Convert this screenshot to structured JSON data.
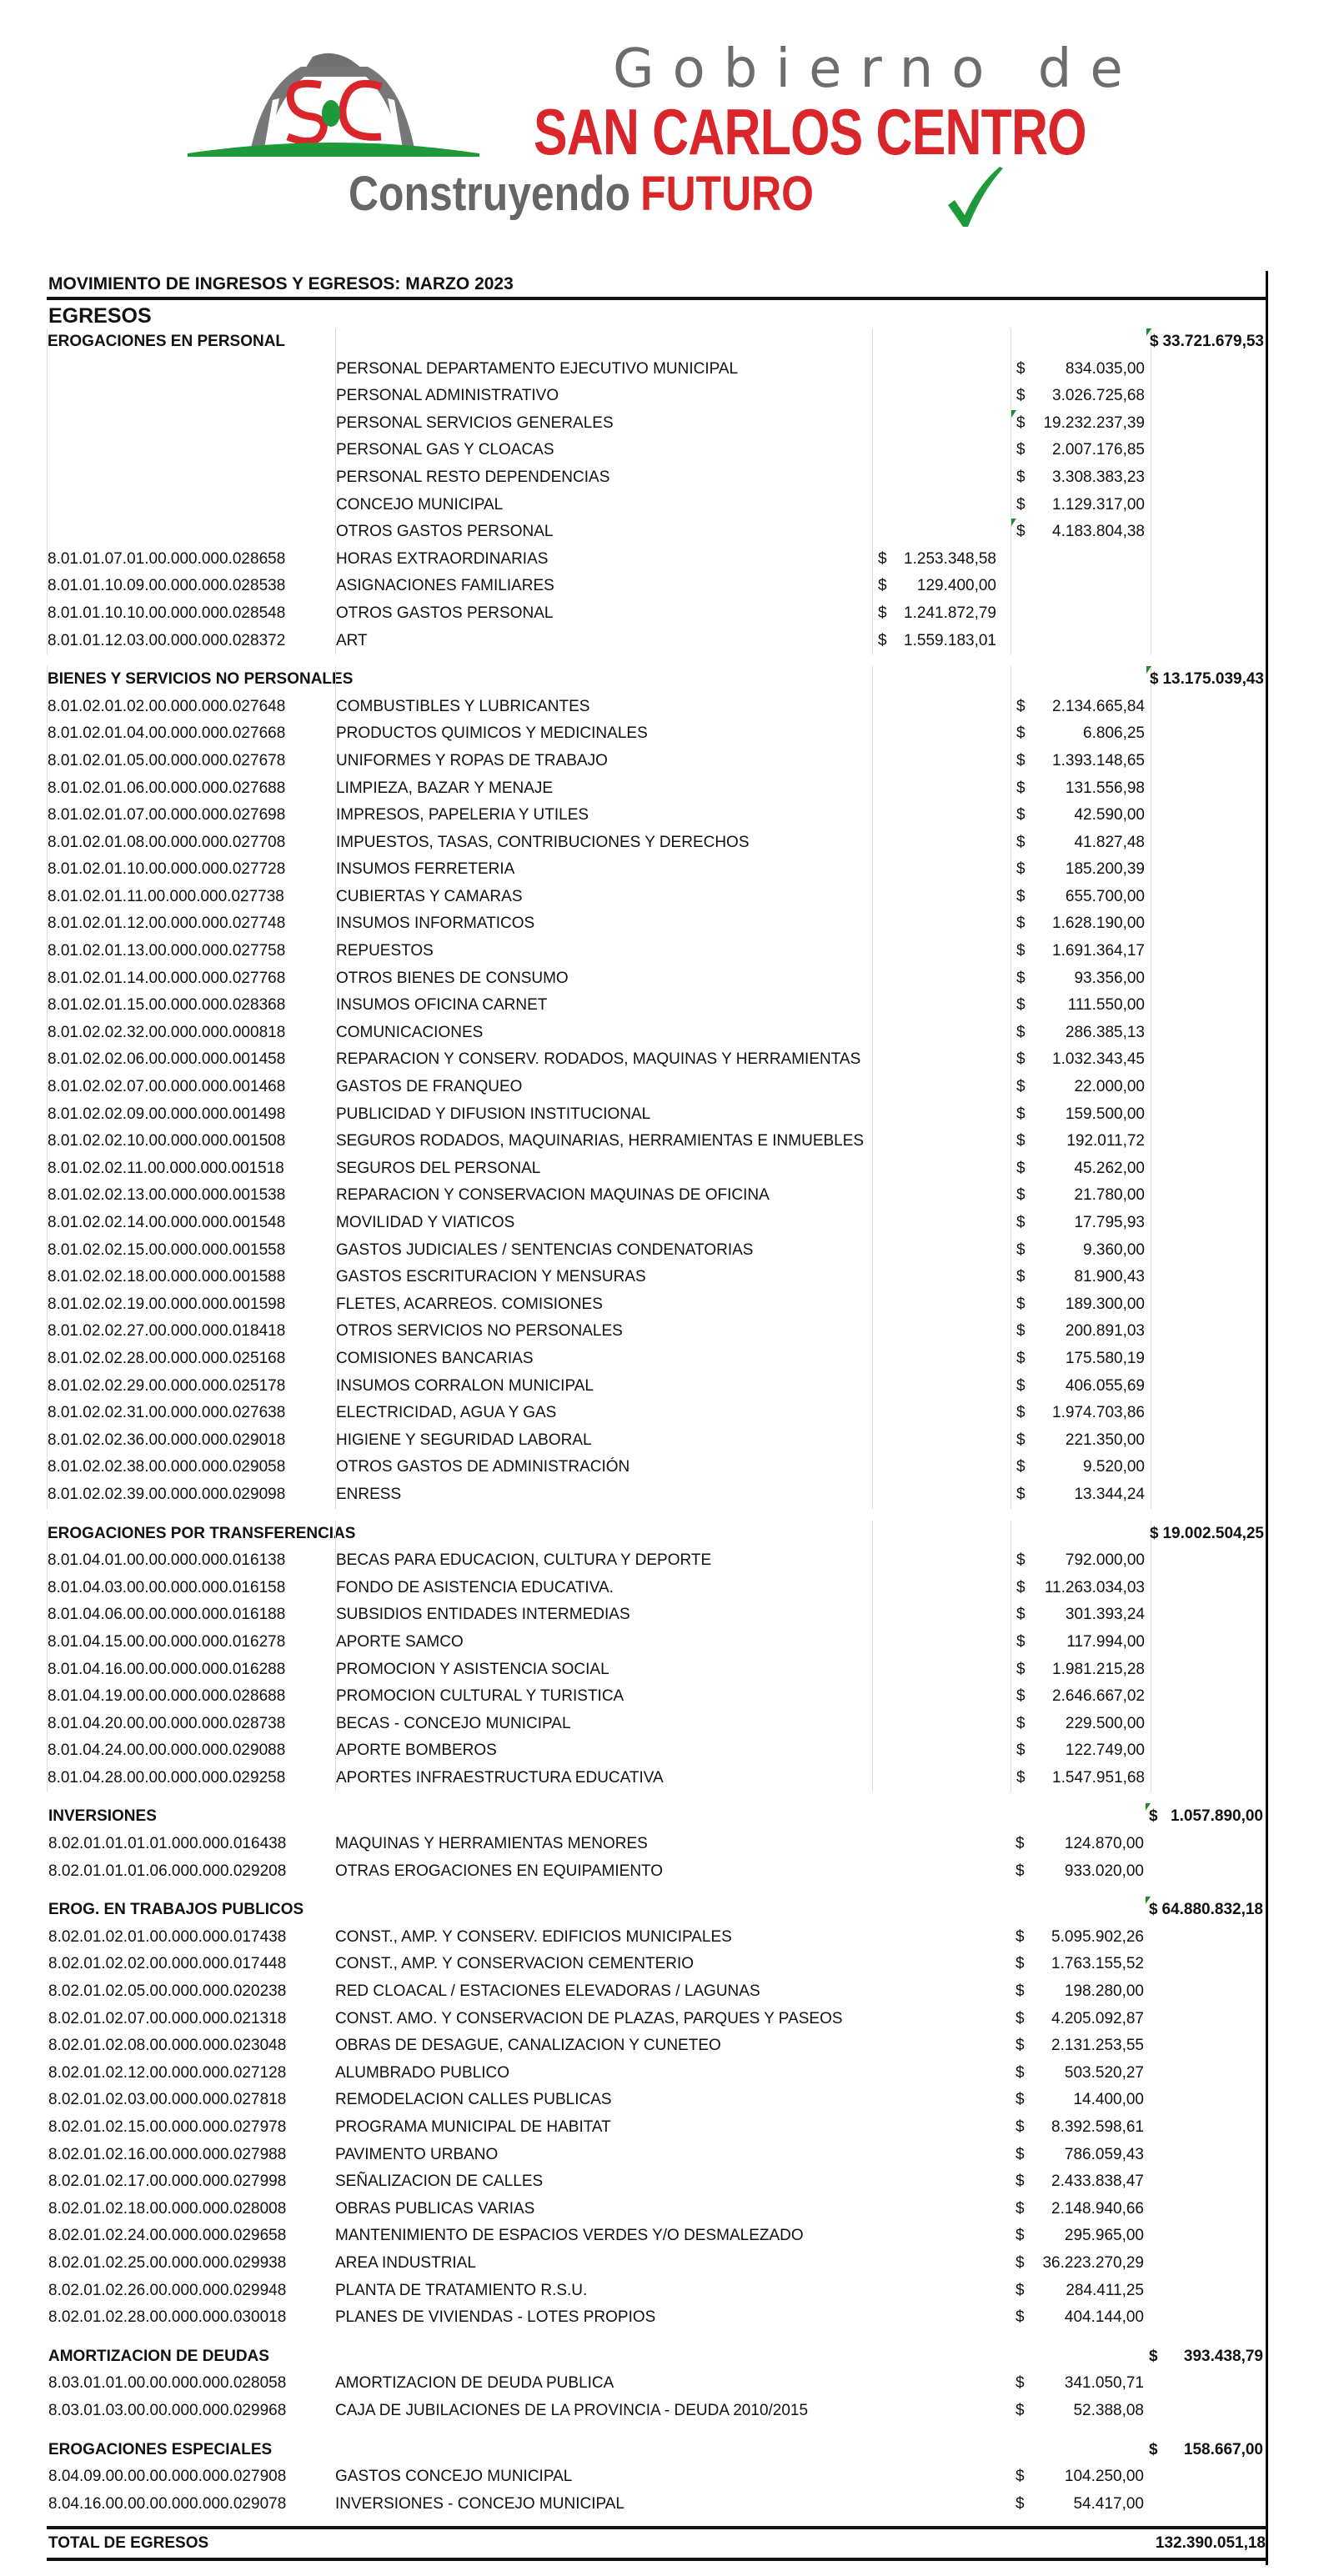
{
  "header": {
    "logo_initials": "SC",
    "line1": "Gobierno de",
    "line2": "SAN CARLOS CENTRO",
    "slogan_a": "Construyendo",
    "slogan_b": "FUTURO",
    "colors": {
      "red": "#d8262a",
      "gray": "#6d6d6d",
      "green": "#1f9a3a"
    }
  },
  "report": {
    "title": "MOVIMIENTO DE INGRESOS Y EGRESOS: MARZO 2023",
    "section": "EGRESOS",
    "currency": "$",
    "total_label": "TOTAL DE EGRESOS",
    "total_value": "132.390.051,18"
  },
  "sections": [
    {
      "title": "EROGACIONES EN PERSONAL",
      "total": "33.721.679,53",
      "marker": true,
      "rows": [
        {
          "code": "",
          "description": "PERSONAL DEPARTAMENTO EJECUTIVO MUNICIPAL",
          "amount": "834.035,00"
        },
        {
          "code": "",
          "description": "PERSONAL ADMINISTRATIVO",
          "amount": "3.026.725,68"
        },
        {
          "code": "",
          "description": "PERSONAL SERVICIOS GENERALES",
          "amount": "19.232.237,39",
          "marker": true
        },
        {
          "code": "",
          "description": "PERSONAL GAS Y CLOACAS",
          "amount": "2.007.176,85"
        },
        {
          "code": "",
          "description": "PERSONAL RESTO DEPENDENCIAS",
          "amount": "3.308.383,23"
        },
        {
          "code": "",
          "description": "CONCEJO MUNICIPAL",
          "amount": "1.129.317,00"
        },
        {
          "code": "",
          "description": "OTROS GASTOS PERSONAL",
          "amount": "4.183.804,38",
          "marker": true
        },
        {
          "code": "8.01.01.07.01.00.000.000.028658",
          "description": "HORAS EXTRAORDINARIAS",
          "detail": "1.253.348,58"
        },
        {
          "code": "8.01.01.10.09.00.000.000.028538",
          "description": "ASIGNACIONES FAMILIARES",
          "detail": "129.400,00"
        },
        {
          "code": "8.01.01.10.10.00.000.000.028548",
          "description": "OTROS GASTOS PERSONAL",
          "detail": "1.241.872,79"
        },
        {
          "code": "8.01.01.12.03.00.000.000.028372",
          "description": "ART",
          "detail": "1.559.183,01"
        }
      ]
    },
    {
      "title": "BIENES Y SERVICIOS NO PERSONALES",
      "total": "13.175.039,43",
      "marker": true,
      "rows": [
        {
          "code": "8.01.02.01.02.00.000.000.027648",
          "description": "COMBUSTIBLES Y LUBRICANTES",
          "amount": "2.134.665,84"
        },
        {
          "code": "8.01.02.01.04.00.000.000.027668",
          "description": "PRODUCTOS QUIMICOS Y MEDICINALES",
          "amount": "6.806,25"
        },
        {
          "code": "8.01.02.01.05.00.000.000.027678",
          "description": "UNIFORMES Y ROPAS DE TRABAJO",
          "amount": "1.393.148,65"
        },
        {
          "code": "8.01.02.01.06.00.000.000.027688",
          "description": "LIMPIEZA, BAZAR Y MENAJE",
          "amount": "131.556,98"
        },
        {
          "code": "8.01.02.01.07.00.000.000.027698",
          "description": "IMPRESOS, PAPELERIA Y UTILES",
          "amount": "42.590,00"
        },
        {
          "code": "8.01.02.01.08.00.000.000.027708",
          "description": "IMPUESTOS, TASAS, CONTRIBUCIONES Y DERECHOS",
          "amount": "41.827,48"
        },
        {
          "code": "8.01.02.01.10.00.000.000.027728",
          "description": "INSUMOS FERRETERIA",
          "amount": "185.200,39"
        },
        {
          "code": "8.01.02.01.11.00.000.000.027738",
          "description": "CUBIERTAS Y CAMARAS",
          "amount": "655.700,00"
        },
        {
          "code": "8.01.02.01.12.00.000.000.027748",
          "description": "INSUMOS INFORMATICOS",
          "amount": "1.628.190,00"
        },
        {
          "code": "8.01.02.01.13.00.000.000.027758",
          "description": "REPUESTOS",
          "amount": "1.691.364,17"
        },
        {
          "code": "8.01.02.01.14.00.000.000.027768",
          "description": "OTROS BIENES DE CONSUMO",
          "amount": "93.356,00"
        },
        {
          "code": "8.01.02.01.15.00.000.000.028368",
          "description": "INSUMOS OFICINA CARNET",
          "amount": "111.550,00"
        },
        {
          "code": "8.01.02.02.32.00.000.000.000818",
          "description": "COMUNICACIONES",
          "amount": "286.385,13"
        },
        {
          "code": "8.01.02.02.06.00.000.000.001458",
          "description": "REPARACION Y CONSERV. RODADOS, MAQUINAS Y HERRAMIENTAS",
          "amount": "1.032.343,45"
        },
        {
          "code": "8.01.02.02.07.00.000.000.001468",
          "description": "GASTOS DE FRANQUEO",
          "amount": "22.000,00"
        },
        {
          "code": "8.01.02.02.09.00.000.000.001498",
          "description": "PUBLICIDAD Y DIFUSION INSTITUCIONAL",
          "amount": "159.500,00"
        },
        {
          "code": "8.01.02.02.10.00.000.000.001508",
          "description": "SEGUROS RODADOS, MAQUINARIAS, HERRAMIENTAS E INMUEBLES",
          "amount": "192.011,72"
        },
        {
          "code": "8.01.02.02.11.00.000.000.001518",
          "description": "SEGUROS DEL PERSONAL",
          "amount": "45.262,00"
        },
        {
          "code": "8.01.02.02.13.00.000.000.001538",
          "description": "REPARACION Y CONSERVACION MAQUINAS DE OFICINA",
          "amount": "21.780,00"
        },
        {
          "code": "8.01.02.02.14.00.000.000.001548",
          "description": "MOVILIDAD Y VIATICOS",
          "amount": "17.795,93"
        },
        {
          "code": "8.01.02.02.15.00.000.000.001558",
          "description": "GASTOS JUDICIALES / SENTENCIAS CONDENATORIAS",
          "amount": "9.360,00"
        },
        {
          "code": "8.01.02.02.18.00.000.000.001588",
          "description": "GASTOS ESCRITURACION Y MENSURAS",
          "amount": "81.900,43"
        },
        {
          "code": "8.01.02.02.19.00.000.000.001598",
          "description": "FLETES, ACARREOS. COMISIONES",
          "amount": "189.300,00"
        },
        {
          "code": "8.01.02.02.27.00.000.000.018418",
          "description": "OTROS SERVICIOS NO PERSONALES",
          "amount": "200.891,03"
        },
        {
          "code": "8.01.02.02.28.00.000.000.025168",
          "description": "COMISIONES BANCARIAS",
          "amount": "175.580,19"
        },
        {
          "code": "8.01.02.02.29.00.000.000.025178",
          "description": "INSUMOS CORRALON MUNICIPAL",
          "amount": "406.055,69"
        },
        {
          "code": "8.01.02.02.31.00.000.000.027638",
          "description": "ELECTRICIDAD, AGUA Y GAS",
          "amount": "1.974.703,86"
        },
        {
          "code": "8.01.02.02.36.00.000.000.029018",
          "description": "HIGIENE Y SEGURIDAD LABORAL",
          "amount": "221.350,00"
        },
        {
          "code": "8.01.02.02.38.00.000.000.029058",
          "description": "OTROS GASTOS DE ADMINISTRACIÓN",
          "amount": "9.520,00"
        },
        {
          "code": "8.01.02.02.39.00.000.000.029098",
          "description": "ENRESS",
          "amount": "13.344,24"
        }
      ]
    },
    {
      "title": "EROGACIONES POR TRANSFERENCIAS",
      "total": "19.002.504,25",
      "marker": false,
      "rows": [
        {
          "code": "8.01.04.01.00.00.000.000.016138",
          "description": "BECAS PARA EDUCACION, CULTURA Y DEPORTE",
          "amount": "792.000,00"
        },
        {
          "code": "8.01.04.03.00.00.000.000.016158",
          "description": "FONDO DE ASISTENCIA EDUCATIVA.",
          "amount": "11.263.034,03"
        },
        {
          "code": "8.01.04.06.00.00.000.000.016188",
          "description": "SUBSIDIOS ENTIDADES INTERMEDIAS",
          "amount": "301.393,24"
        },
        {
          "code": "8.01.04.15.00.00.000.000.016278",
          "description": "APORTE SAMCO",
          "amount": "117.994,00"
        },
        {
          "code": "8.01.04.16.00.00.000.000.016288",
          "description": "PROMOCION Y ASISTENCIA SOCIAL",
          "amount": "1.981.215,28"
        },
        {
          "code": "8.01.04.19.00.00.000.000.028688",
          "description": "PROMOCION CULTURAL Y TURISTICA",
          "amount": "2.646.667,02"
        },
        {
          "code": "8.01.04.20.00.00.000.000.028738",
          "description": "BECAS - CONCEJO MUNICIPAL",
          "amount": "229.500,00"
        },
        {
          "code": "8.01.04.24.00.00.000.000.029088",
          "description": "APORTE BOMBEROS",
          "amount": "122.749,00"
        },
        {
          "code": "8.01.04.28.00.00.000.000.029258",
          "description": "APORTES INFRAESTRUCTURA EDUCATIVA",
          "amount": "1.547.951,68"
        }
      ]
    },
    {
      "title": "INVERSIONES",
      "total": "1.057.890,00",
      "marker": true,
      "rows": [
        {
          "code": "8.02.01.01.01.01.000.000.016438",
          "description": "MAQUINAS Y HERRAMIENTAS MENORES",
          "amount": "124.870,00"
        },
        {
          "code": "8.02.01.01.01.06.000.000.029208",
          "description": "OTRAS EROGACIONES EN EQUIPAMIENTO",
          "amount": "933.020,00"
        }
      ]
    },
    {
      "title": "EROG. EN TRABAJOS PUBLICOS",
      "total": "64.880.832,18",
      "marker": true,
      "rows": [
        {
          "code": "8.02.01.02.01.00.000.000.017438",
          "description": "CONST., AMP. Y CONSERV. EDIFICIOS MUNICIPALES",
          "amount": "5.095.902,26"
        },
        {
          "code": "8.02.01.02.02.00.000.000.017448",
          "description": "CONST., AMP. Y CONSERVACION CEMENTERIO",
          "amount": "1.763.155,52"
        },
        {
          "code": "8.02.01.02.05.00.000.000.020238",
          "description": "RED CLOACAL / ESTACIONES ELEVADORAS / LAGUNAS",
          "amount": "198.280,00"
        },
        {
          "code": "8.02.01.02.07.00.000.000.021318",
          "description": "CONST. AMO. Y CONSERVACION DE PLAZAS, PARQUES Y PASEOS",
          "amount": "4.205.092,87"
        },
        {
          "code": "8.02.01.02.08.00.000.000.023048",
          "description": "OBRAS DE DESAGUE, CANALIZACION Y CUNETEO",
          "amount": "2.131.253,55"
        },
        {
          "code": "8.02.01.02.12.00.000.000.027128",
          "description": "ALUMBRADO PUBLICO",
          "amount": "503.520,27"
        },
        {
          "code": "8.02.01.02.03.00.000.000.027818",
          "description": "REMODELACION CALLES PUBLICAS",
          "amount": "14.400,00"
        },
        {
          "code": "8.02.01.02.15.00.000.000.027978",
          "description": "PROGRAMA MUNICIPAL DE HABITAT",
          "amount": "8.392.598,61"
        },
        {
          "code": "8.02.01.02.16.00.000.000.027988",
          "description": "PAVIMENTO URBANO",
          "amount": "786.059,43"
        },
        {
          "code": "8.02.01.02.17.00.000.000.027998",
          "description": "SEÑALIZACION DE CALLES",
          "amount": "2.433.838,47"
        },
        {
          "code": "8.02.01.02.18.00.000.000.028008",
          "description": "OBRAS PUBLICAS VARIAS",
          "amount": "2.148.940,66"
        },
        {
          "code": "8.02.01.02.24.00.000.000.029658",
          "description": "MANTENIMIENTO DE ESPACIOS VERDES Y/O DESMALEZADO",
          "amount": "295.965,00"
        },
        {
          "code": "8.02.01.02.25.00.000.000.029938",
          "description": "AREA INDUSTRIAL",
          "amount": "36.223.270,29"
        },
        {
          "code": "8.02.01.02.26.00.000.000.029948",
          "description": "PLANTA DE TRATAMIENTO R.S.U.",
          "amount": "284.411,25"
        },
        {
          "code": "8.02.01.02.28.00.000.000.030018",
          "description": "PLANES DE VIVIENDAS - LOTES PROPIOS",
          "amount": "404.144,00"
        }
      ]
    },
    {
      "title": "AMORTIZACION DE DEUDAS",
      "total": "393.438,79",
      "marker": false,
      "rows": [
        {
          "code": "8.03.01.01.00.00.000.000.028058",
          "description": "AMORTIZACION DE DEUDA PUBLICA",
          "amount": "341.050,71"
        },
        {
          "code": "8.03.01.03.00.00.000.000.029968",
          "description": "CAJA DE JUBILACIONES DE LA PROVINCIA - DEUDA 2010/2015",
          "amount": "52.388,08"
        }
      ]
    },
    {
      "title": "EROGACIONES ESPECIALES",
      "total": "158.667,00",
      "marker": false,
      "rows": [
        {
          "code": "8.04.09.00.00.00.000.000.027908",
          "description": "GASTOS CONCEJO MUNICIPAL",
          "amount": "104.250,00"
        },
        {
          "code": "8.04.16.00.00.00.000.000.029078",
          "description": "INVERSIONES - CONCEJO MUNICIPAL",
          "amount": "54.417,00"
        }
      ]
    }
  ]
}
